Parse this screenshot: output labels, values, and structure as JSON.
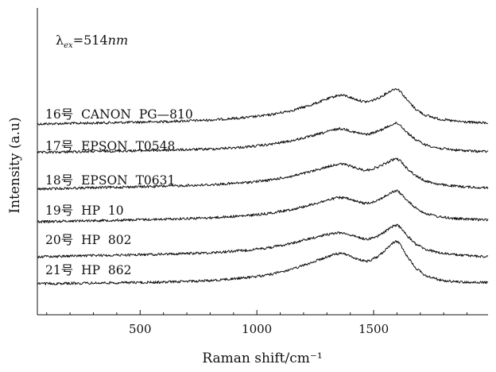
{
  "chart_data": {
    "type": "line",
    "xlabel": "Raman shift/cm⁻¹",
    "ylabel": "Intensity (a.u)",
    "xlim": [
      60,
      1990
    ],
    "xticks": [
      500,
      1000,
      1500
    ],
    "grid": false,
    "legend": "none",
    "annotation": {
      "symbol": "λ",
      "subscript": "ex",
      "equals": "=514",
      "unit": "nm"
    },
    "y_offset_scale": "arbitrary",
    "series": [
      {
        "name": "16号  CANON  PG—810",
        "offset": 5,
        "points": [
          [
            60,
            0
          ],
          [
            200,
            0.03
          ],
          [
            400,
            0.07
          ],
          [
            600,
            0.12
          ],
          [
            800,
            0.2
          ],
          [
            950,
            0.32
          ],
          [
            1050,
            0.45
          ],
          [
            1150,
            0.68
          ],
          [
            1230,
            0.95
          ],
          [
            1300,
            1.25
          ],
          [
            1340,
            1.42
          ],
          [
            1360,
            1.45
          ],
          [
            1380,
            1.42
          ],
          [
            1420,
            1.25
          ],
          [
            1460,
            1.12
          ],
          [
            1480,
            1.13
          ],
          [
            1520,
            1.3
          ],
          [
            1560,
            1.58
          ],
          [
            1585,
            1.75
          ],
          [
            1600,
            1.78
          ],
          [
            1615,
            1.65
          ],
          [
            1640,
            1.25
          ],
          [
            1680,
            0.75
          ],
          [
            1720,
            0.45
          ],
          [
            1780,
            0.25
          ],
          [
            1850,
            0.14
          ],
          [
            1920,
            0.08
          ],
          [
            1990,
            0.05
          ]
        ]
      },
      {
        "name": "17号  EPSON  T0548",
        "offset": 4,
        "points": [
          [
            60,
            0
          ],
          [
            200,
            0.04
          ],
          [
            400,
            0.08
          ],
          [
            600,
            0.12
          ],
          [
            800,
            0.18
          ],
          [
            950,
            0.28
          ],
          [
            1050,
            0.4
          ],
          [
            1150,
            0.6
          ],
          [
            1230,
            0.82
          ],
          [
            1300,
            1.05
          ],
          [
            1340,
            1.18
          ],
          [
            1360,
            1.2
          ],
          [
            1380,
            1.17
          ],
          [
            1420,
            1.02
          ],
          [
            1460,
            0.92
          ],
          [
            1480,
            0.93
          ],
          [
            1520,
            1.08
          ],
          [
            1560,
            1.3
          ],
          [
            1585,
            1.45
          ],
          [
            1600,
            1.48
          ],
          [
            1615,
            1.38
          ],
          [
            1640,
            1.05
          ],
          [
            1680,
            0.65
          ],
          [
            1720,
            0.4
          ],
          [
            1780,
            0.22
          ],
          [
            1850,
            0.13
          ],
          [
            1920,
            0.08
          ],
          [
            1990,
            0.05
          ]
        ]
      },
      {
        "name": "18号  EPSON  T0631",
        "offset": 3,
        "points": [
          [
            60,
            0
          ],
          [
            200,
            0.05
          ],
          [
            400,
            0.1
          ],
          [
            600,
            0.15
          ],
          [
            800,
            0.22
          ],
          [
            950,
            0.33
          ],
          [
            1050,
            0.45
          ],
          [
            1150,
            0.65
          ],
          [
            1230,
            0.88
          ],
          [
            1300,
            1.12
          ],
          [
            1340,
            1.25
          ],
          [
            1360,
            1.27
          ],
          [
            1380,
            1.24
          ],
          [
            1420,
            1.08
          ],
          [
            1460,
            0.96
          ],
          [
            1480,
            0.97
          ],
          [
            1520,
            1.12
          ],
          [
            1560,
            1.35
          ],
          [
            1585,
            1.5
          ],
          [
            1600,
            1.53
          ],
          [
            1615,
            1.42
          ],
          [
            1640,
            1.08
          ],
          [
            1680,
            0.68
          ],
          [
            1720,
            0.42
          ],
          [
            1780,
            0.24
          ],
          [
            1850,
            0.15
          ],
          [
            1920,
            0.1
          ],
          [
            1990,
            0.07
          ]
        ]
      },
      {
        "name": "19号  HP  10",
        "offset": 2,
        "points": [
          [
            60,
            0
          ],
          [
            200,
            0.04
          ],
          [
            400,
            0.08
          ],
          [
            600,
            0.13
          ],
          [
            800,
            0.2
          ],
          [
            950,
            0.3
          ],
          [
            1050,
            0.42
          ],
          [
            1150,
            0.62
          ],
          [
            1230,
            0.85
          ],
          [
            1300,
            1.08
          ],
          [
            1340,
            1.2
          ],
          [
            1360,
            1.22
          ],
          [
            1380,
            1.19
          ],
          [
            1420,
            1.04
          ],
          [
            1460,
            0.93
          ],
          [
            1480,
            0.94
          ],
          [
            1520,
            1.1
          ],
          [
            1560,
            1.35
          ],
          [
            1585,
            1.52
          ],
          [
            1600,
            1.55
          ],
          [
            1615,
            1.44
          ],
          [
            1640,
            1.1
          ],
          [
            1680,
            0.7
          ],
          [
            1720,
            0.43
          ],
          [
            1780,
            0.25
          ],
          [
            1850,
            0.16
          ],
          [
            1920,
            0.12
          ],
          [
            1990,
            0.1
          ]
        ]
      },
      {
        "name": "20号  HP  802",
        "offset": 1,
        "points": [
          [
            60,
            0
          ],
          [
            200,
            0.04
          ],
          [
            400,
            0.08
          ],
          [
            600,
            0.13
          ],
          [
            800,
            0.2
          ],
          [
            950,
            0.32
          ],
          [
            1050,
            0.45
          ],
          [
            1150,
            0.68
          ],
          [
            1230,
            0.92
          ],
          [
            1300,
            1.12
          ],
          [
            1340,
            1.2
          ],
          [
            1360,
            1.21
          ],
          [
            1380,
            1.18
          ],
          [
            1420,
            1.02
          ],
          [
            1460,
            0.9
          ],
          [
            1480,
            0.9
          ],
          [
            1520,
            1.05
          ],
          [
            1560,
            1.35
          ],
          [
            1585,
            1.55
          ],
          [
            1600,
            1.6
          ],
          [
            1615,
            1.48
          ],
          [
            1640,
            1.1
          ],
          [
            1680,
            0.65
          ],
          [
            1720,
            0.38
          ],
          [
            1780,
            0.2
          ],
          [
            1850,
            0.1
          ],
          [
            1920,
            0.04
          ],
          [
            1990,
            0
          ]
        ]
      },
      {
        "name": "21号  HP  862",
        "offset": 0,
        "points": [
          [
            60,
            0
          ],
          [
            200,
            0.02
          ],
          [
            400,
            0.05
          ],
          [
            600,
            0.08
          ],
          [
            800,
            0.16
          ],
          [
            950,
            0.3
          ],
          [
            1050,
            0.45
          ],
          [
            1150,
            0.72
          ],
          [
            1230,
            1.05
          ],
          [
            1300,
            1.35
          ],
          [
            1340,
            1.5
          ],
          [
            1360,
            1.52
          ],
          [
            1380,
            1.49
          ],
          [
            1420,
            1.28
          ],
          [
            1460,
            1.14
          ],
          [
            1480,
            1.15
          ],
          [
            1520,
            1.38
          ],
          [
            1560,
            1.8
          ],
          [
            1585,
            2.08
          ],
          [
            1600,
            2.14
          ],
          [
            1615,
            1.98
          ],
          [
            1640,
            1.45
          ],
          [
            1680,
            0.8
          ],
          [
            1720,
            0.42
          ],
          [
            1780,
            0.2
          ],
          [
            1850,
            0.1
          ],
          [
            1920,
            0.07
          ],
          [
            1990,
            0.06
          ]
        ]
      }
    ]
  }
}
